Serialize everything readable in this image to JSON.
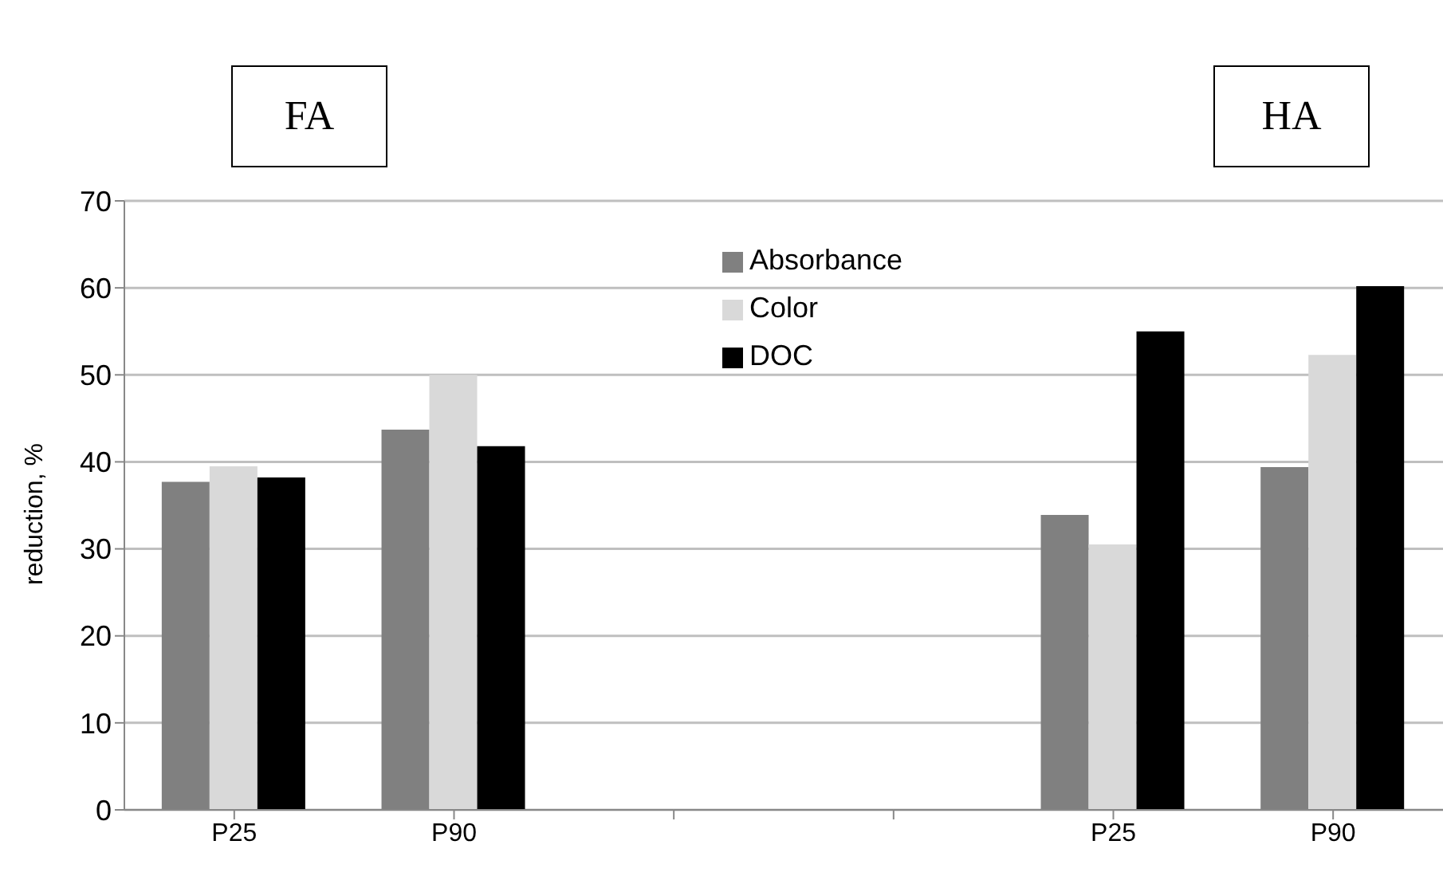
{
  "chart_data": {
    "type": "bar",
    "ylabel": "reduction, %",
    "categories": [
      "P25",
      "P90",
      null,
      null,
      "P25",
      "P90"
    ],
    "series": [
      {
        "name": "Absorbance",
        "color": "#808080",
        "values": [
          37.7,
          43.7,
          null,
          null,
          33.9,
          39.4
        ]
      },
      {
        "name": "Color",
        "color": "#d9d9d9",
        "values": [
          39.5,
          50.0,
          null,
          null,
          30.5,
          52.3
        ]
      },
      {
        "name": "DOC",
        "color": "#000000",
        "values": [
          38.2,
          41.8,
          null,
          null,
          55.0,
          60.2
        ]
      }
    ],
    "ylim": [
      0,
      70
    ],
    "yticks": [
      0,
      10,
      20,
      30,
      40,
      50,
      60,
      70
    ],
    "grid": "y",
    "legend": "top",
    "annotations": [
      "FA",
      "HA"
    ]
  }
}
